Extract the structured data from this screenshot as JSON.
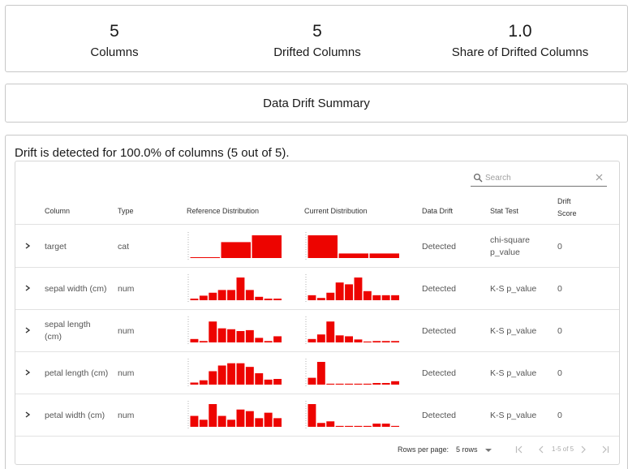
{
  "metrics": [
    {
      "value": "5",
      "label": "Columns"
    },
    {
      "value": "5",
      "label": "Drifted Columns"
    },
    {
      "value": "1.0",
      "label": "Share of Drifted Columns"
    }
  ],
  "summary_title": "Data Drift Summary",
  "drift_text": "Drift is detected for 100.0% of columns (5 out of 5).",
  "search": {
    "placeholder": "Search"
  },
  "headers": {
    "column": "Column",
    "type": "Type",
    "reference": "Reference Distribution",
    "current": "Current Distribution",
    "drift": "Data Drift",
    "stat_test": "Stat Test",
    "drift_score_line1": "Drift",
    "drift_score_line2": "Score"
  },
  "rows": [
    {
      "column": "target",
      "type": "cat",
      "drift": "Detected",
      "stat_test": "chi-square p_value",
      "score": "0",
      "ref": [
        0,
        0.7,
        1.0
      ],
      "cur": [
        1.0,
        0.2,
        0.2
      ]
    },
    {
      "column": "sepal width (cm)",
      "type": "num",
      "drift": "Detected",
      "stat_test": "K-S p_value",
      "score": "0",
      "ref": [
        0.07,
        0.2,
        0.33,
        0.45,
        0.45,
        1.0,
        0.45,
        0.15,
        0.07,
        0.07
      ],
      "cur": [
        0.22,
        0.1,
        0.33,
        0.78,
        0.7,
        1.0,
        0.4,
        0.22,
        0.22,
        0.22
      ]
    },
    {
      "column": "sepal length (cm)",
      "type": "num",
      "drift": "Detected",
      "stat_test": "K-S p_value",
      "score": "0",
      "ref": [
        0.15,
        0.06,
        0.92,
        0.62,
        0.58,
        0.5,
        0.54,
        0.2,
        0.06,
        0.27
      ],
      "cur": [
        0.15,
        0.35,
        0.92,
        0.31,
        0.27,
        0.13,
        0.04,
        0.06,
        0.06,
        0.06
      ]
    },
    {
      "column": "petal length (cm)",
      "type": "num",
      "drift": "Detected",
      "stat_test": "K-S p_value",
      "score": "0",
      "ref": [
        0.09,
        0.19,
        0.59,
        0.84,
        0.94,
        0.94,
        0.78,
        0.5,
        0.22,
        0.25
      ],
      "cur": [
        0.3,
        1.0,
        0.04,
        0.04,
        0.04,
        0.04,
        0.04,
        0.07,
        0.07,
        0.15
      ]
    },
    {
      "column": "petal width (cm)",
      "type": "num",
      "drift": "Detected",
      "stat_test": "K-S p_value",
      "score": "0",
      "ref": [
        0.48,
        0.31,
        1.0,
        0.48,
        0.31,
        0.76,
        0.69,
        0.38,
        0.62,
        0.38
      ],
      "cur": [
        1.0,
        0.17,
        0.24,
        0.04,
        0.04,
        0.04,
        0.04,
        0.14,
        0.14,
        0.04
      ]
    }
  ],
  "footer": {
    "rows_per_page_label": "Rows per page:",
    "rows_per_page_value": "5 rows",
    "range": "1-5 of 5"
  },
  "colors": {
    "bar": "#ed0400",
    "axis": "#b0b0b0"
  },
  "icons": [
    "search-icon",
    "clear-icon",
    "chevron-right-icon",
    "dropdown-arrow-icon",
    "first-page-icon",
    "prev-page-icon",
    "next-page-icon",
    "last-page-icon"
  ]
}
